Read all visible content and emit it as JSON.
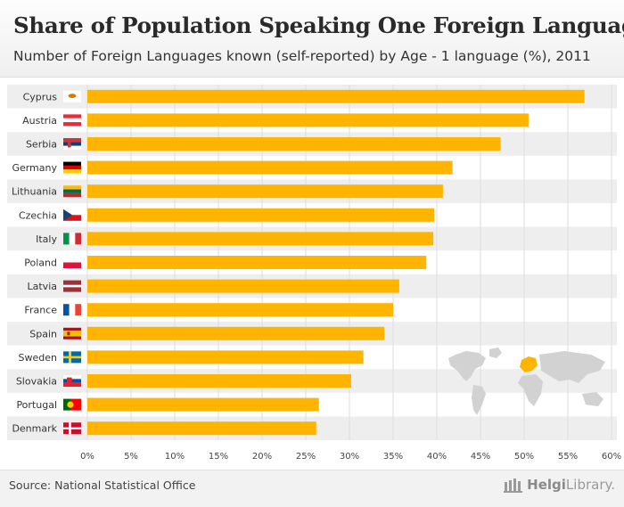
{
  "header": {
    "title": "Share of Population Speaking One Foreign Language",
    "subtitle": "Number of Foreign Languages known (self-reported) by Age - 1 language (%), 2011"
  },
  "footer": {
    "source": "Source: National Statistical Office",
    "brand_part1": "Helgi",
    "brand_part2": "Library."
  },
  "colors": {
    "bar": "#ffb400",
    "band": "#eeeeee",
    "grid": "#dddddd",
    "map": "#cfcfcf",
    "highlight": "#ffb400"
  },
  "chart_data": {
    "type": "bar",
    "orientation": "horizontal",
    "title": "Share of Population Speaking One Foreign Language",
    "subtitle": "Number of Foreign Languages known (self-reported) by Age - 1 language (%), 2011",
    "categories": [
      "Cyprus",
      "Austria",
      "Serbia",
      "Germany",
      "Lithuania",
      "Czechia",
      "Italy",
      "Poland",
      "Latvia",
      "France",
      "Spain",
      "Sweden",
      "Slovakia",
      "Portugal",
      "Denmark"
    ],
    "flags": [
      "cyprus-flag",
      "austria-flag",
      "serbia-flag",
      "germany-flag",
      "lithuania-flag",
      "czechia-flag",
      "italy-flag",
      "poland-flag",
      "latvia-flag",
      "france-flag",
      "spain-flag",
      "sweden-flag",
      "slovakia-flag",
      "portugal-flag",
      "denmark-flag"
    ],
    "values": [
      56.9,
      50.5,
      47.3,
      41.8,
      40.7,
      39.7,
      39.6,
      38.8,
      35.7,
      35.0,
      34.0,
      31.6,
      30.2,
      26.5,
      26.2
    ],
    "xlim": [
      0,
      60
    ],
    "xticks": [
      0,
      5,
      10,
      15,
      20,
      25,
      30,
      35,
      40,
      45,
      50,
      55,
      60
    ],
    "xtick_labels": [
      "0%",
      "5%",
      "10%",
      "15%",
      "20%",
      "25%",
      "30%",
      "35%",
      "40%",
      "45%",
      "50%",
      "55%",
      "60%"
    ],
    "grid": true,
    "legend": "none"
  }
}
